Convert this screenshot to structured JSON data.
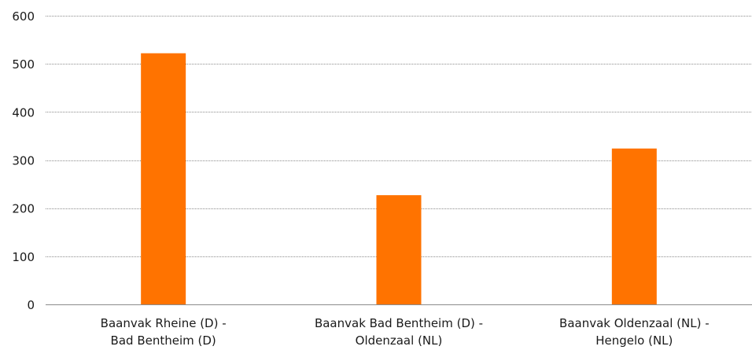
{
  "chart_data": {
    "type": "bar",
    "title": "",
    "xlabel": "",
    "ylabel": "",
    "categories": [
      [
        "Baanvak Rheine (D) -",
        "Bad Bentheim (D)"
      ],
      [
        "Baanvak Bad Bentheim (D) -",
        "Oldenzaal (NL)"
      ],
      [
        "Baanvak Oldenzaal (NL) -",
        "Hengelo (NL)"
      ]
    ],
    "values": [
      522,
      227,
      324
    ],
    "ylim": [
      0,
      600
    ],
    "yticks": [
      0,
      100,
      200,
      300,
      400,
      500,
      600
    ],
    "grid": true,
    "legend": "none",
    "bar_color": "#ff7300"
  }
}
